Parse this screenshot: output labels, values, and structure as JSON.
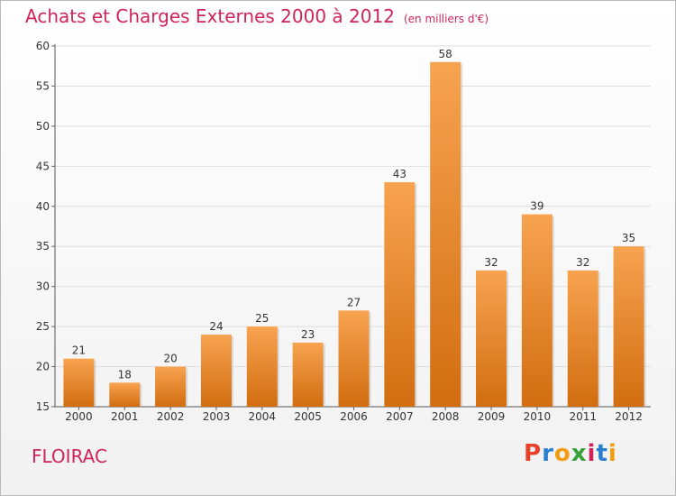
{
  "title": "Achats et Charges Externes 2000 à 2012",
  "subtitle": "(en milliers d'€)",
  "commune": "FLOIRAC",
  "logo": {
    "text": "Proxiti",
    "colors": [
      "#e8402a",
      "#2a7fd0",
      "#f29c12",
      "#3aa23a",
      "#d0245b",
      "#2a7fd0",
      "#f29c12"
    ]
  },
  "colors": {
    "bar_top": "#f7a350",
    "bar_bottom": "#d26d10",
    "accent": "#d0245b"
  },
  "chart_data": {
    "type": "bar",
    "title": "Achats et Charges Externes 2000 à 2012",
    "xlabel": "",
    "ylabel": "",
    "categories": [
      "2000",
      "2001",
      "2002",
      "2003",
      "2004",
      "2005",
      "2006",
      "2007",
      "2008",
      "2009",
      "2010",
      "2011",
      "2012"
    ],
    "values": [
      21,
      18,
      20,
      24,
      25,
      23,
      27,
      43,
      58,
      32,
      39,
      32,
      35
    ],
    "ylim": [
      15,
      60
    ],
    "yticks": [
      15,
      20,
      25,
      30,
      35,
      40,
      45,
      50,
      55,
      60
    ],
    "grid": true,
    "legend": "none"
  }
}
